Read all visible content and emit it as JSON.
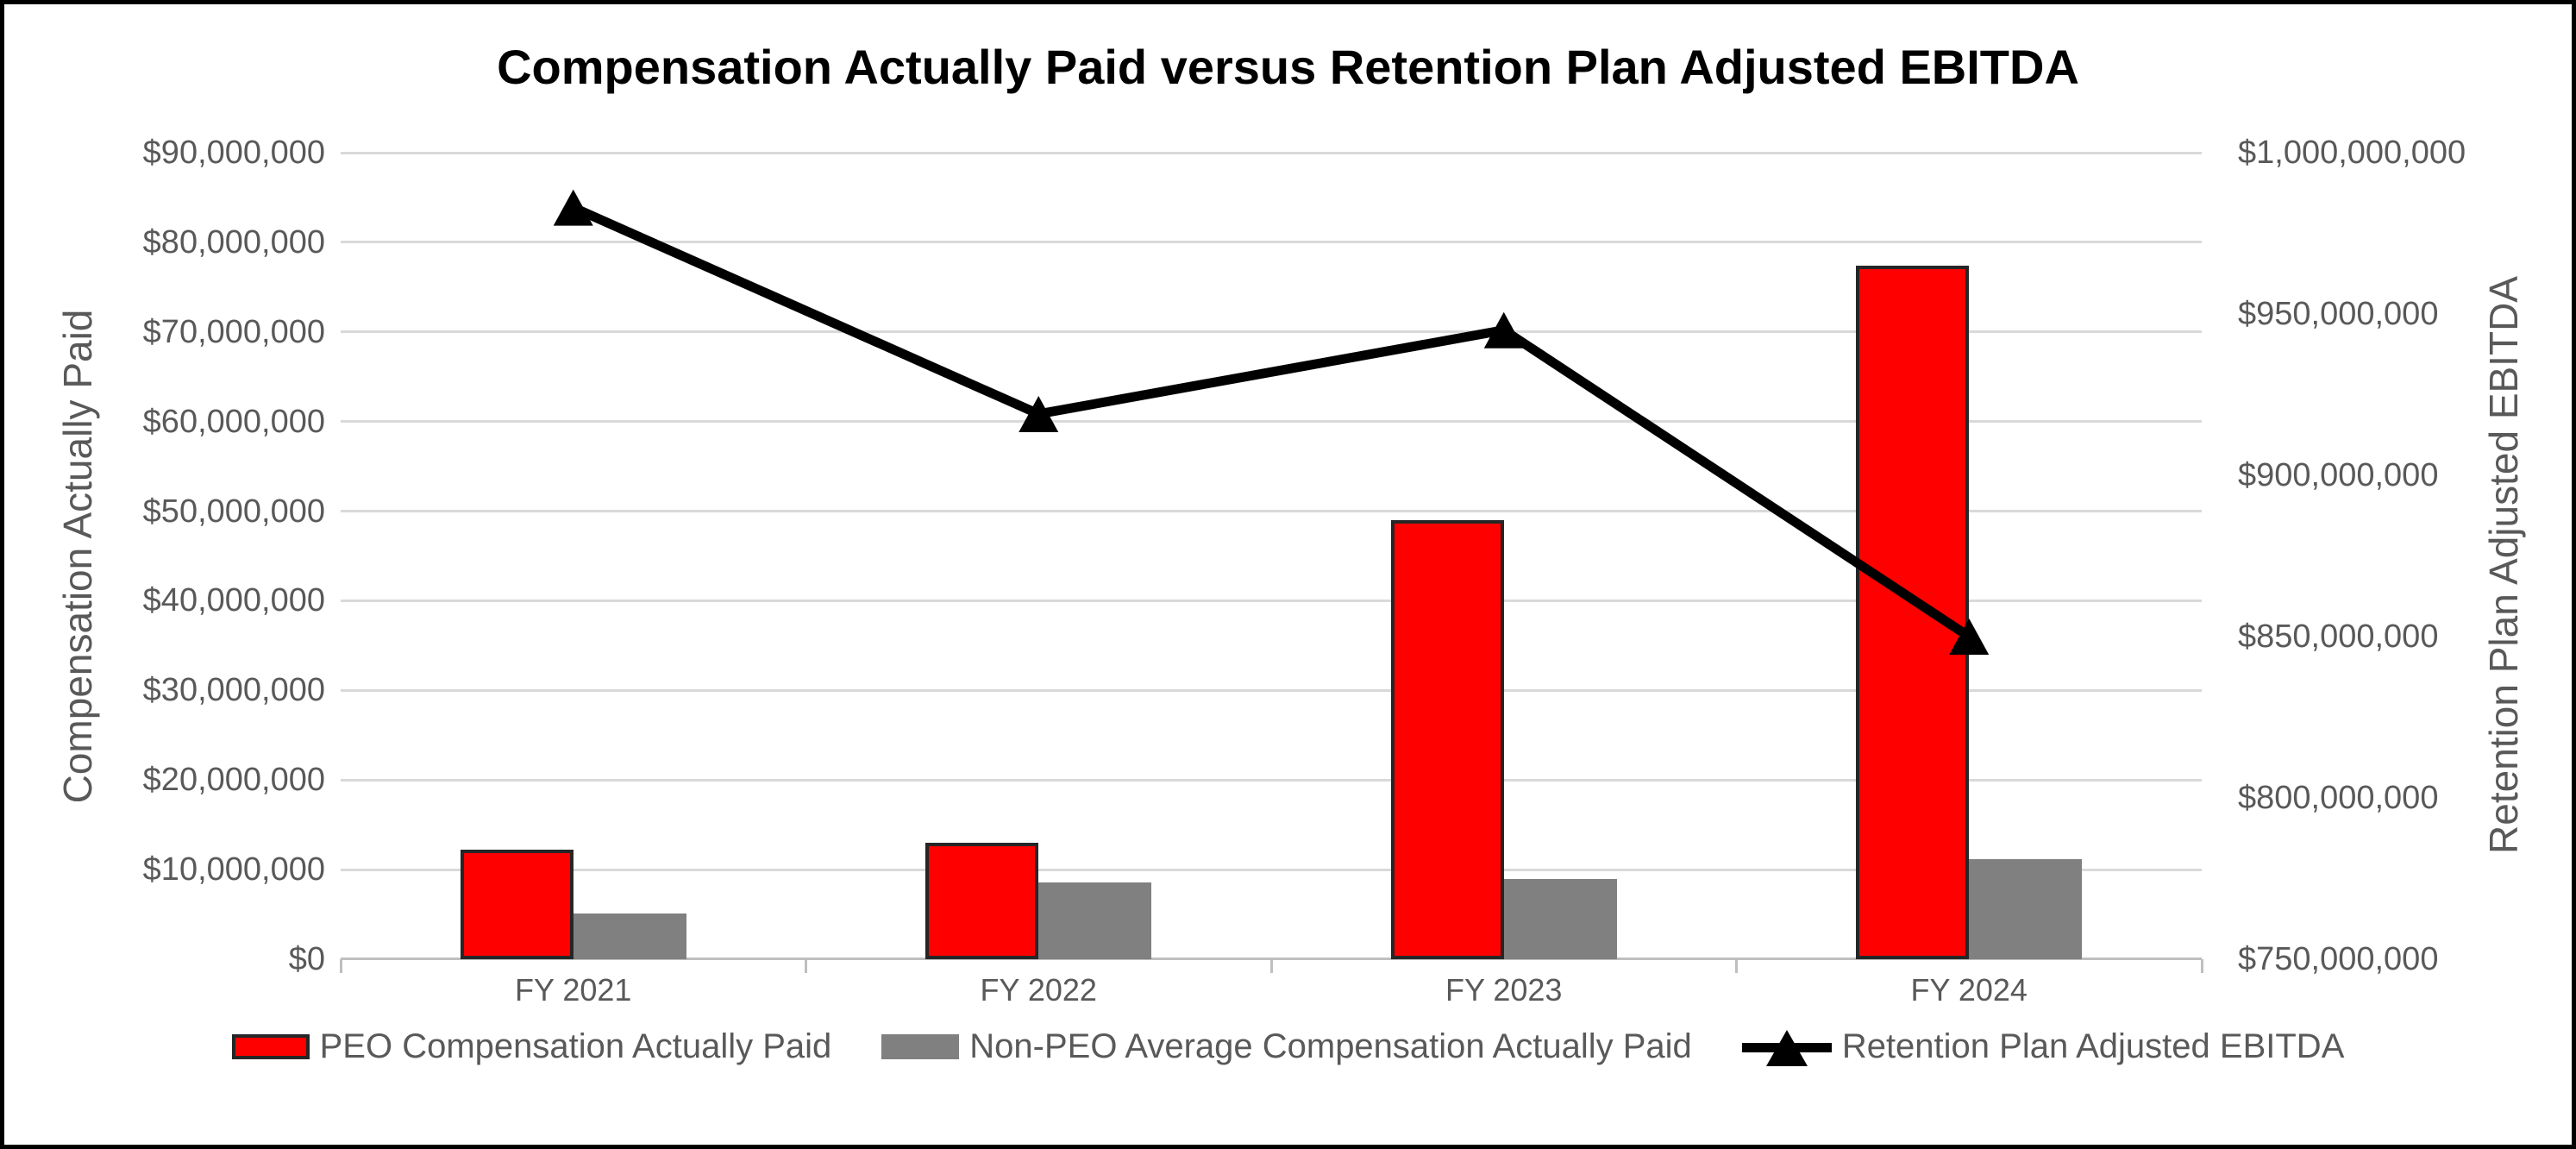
{
  "title": "Compensation Actually Paid versus Retention Plan Adjusted EBITDA",
  "chart_data": {
    "type": "bar",
    "subtype": "grouped bars with line on secondary axis",
    "categories": [
      "FY 2021",
      "FY 2022",
      "FY 2023",
      "FY 2024"
    ],
    "series": [
      {
        "name": "PEO Compensation Actually Paid",
        "type": "bar",
        "axis": "left",
        "color": "#ff0000",
        "border_color": "#262626",
        "values": [
          12200000,
          13000000,
          49000000,
          77400000
        ]
      },
      {
        "name": "Non-PEO Average Compensation Actually Paid",
        "type": "bar",
        "axis": "left",
        "color": "#808080",
        "values": [
          5100000,
          8600000,
          9000000,
          11200000
        ]
      },
      {
        "name": "Retention Plan Adjusted EBITDA",
        "type": "line",
        "axis": "right",
        "color": "#000000",
        "marker": "filled-triangle-up",
        "values": [
          983000000,
          919000000,
          945000000,
          850000000
        ]
      }
    ],
    "left_axis": {
      "title": "Compensation Actually Paid",
      "min": 0,
      "max": 90000000,
      "step": 10000000,
      "tick_labels": [
        "$0",
        "$10,000,000",
        "$20,000,000",
        "$30,000,000",
        "$40,000,000",
        "$50,000,000",
        "$60,000,000",
        "$70,000,000",
        "$80,000,000",
        "$90,000,000"
      ]
    },
    "right_axis": {
      "title": "Retention Plan Adjusted EBITDA",
      "min": 750000000,
      "max": 1000000000,
      "step": 50000000,
      "tick_labels": [
        "$750,000,000",
        "$800,000,000",
        "$850,000,000",
        "$900,000,000",
        "$950,000,000",
        "$1,000,000,000"
      ]
    },
    "grid": true,
    "legend_position": "bottom"
  },
  "colors": {
    "grid": "#d9d9d9",
    "axis_line": "#bfbfbf",
    "tick_text": "#595959",
    "title_text": "#000000",
    "frame": "#000000"
  }
}
